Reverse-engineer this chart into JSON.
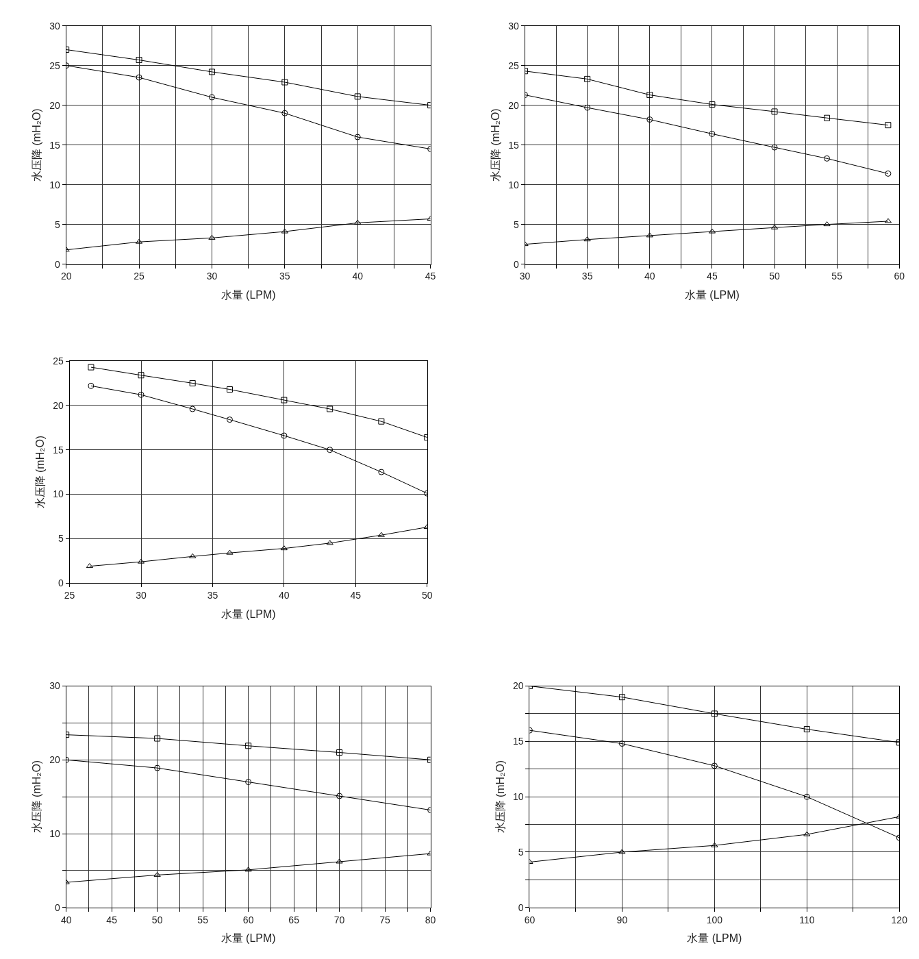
{
  "chart_data": [
    {
      "type": "line",
      "xlabel": "水量 (LPM)",
      "ylabel": "水压降 (mH₂O)",
      "grid": true,
      "xlim": [
        20,
        45
      ],
      "ylim": [
        0,
        30
      ],
      "xticks": [
        20,
        {
          "value": 22.5,
          "label": null
        },
        25,
        {
          "value": 27.5,
          "label": null
        },
        30,
        {
          "value": 32.5,
          "label": null
        },
        35,
        {
          "value": 37.5,
          "label": null
        },
        40,
        {
          "value": 42.5,
          "label": null
        },
        45
      ],
      "yticks": [
        0,
        5,
        10,
        15,
        20,
        25,
        30
      ],
      "series": [
        {
          "color": "#000000",
          "marker": "square",
          "x": [
            20,
            25,
            30,
            35,
            40,
            45
          ],
          "values": [
            27.0,
            25.7,
            24.2,
            22.9,
            21.1,
            20.0
          ]
        },
        {
          "color": "#000000",
          "marker": "circle",
          "x": [
            20,
            25,
            30,
            35,
            40,
            45
          ],
          "values": [
            25.0,
            23.5,
            21.0,
            19.0,
            16.0,
            14.5
          ]
        },
        {
          "color": "#000000",
          "marker": "triangle",
          "x": [
            20,
            25,
            30,
            35,
            40,
            45
          ],
          "values": [
            1.8,
            2.8,
            3.3,
            4.1,
            5.2,
            5.7
          ]
        }
      ]
    },
    {
      "type": "line",
      "xlabel": "水量 (LPM)",
      "ylabel": "水压降 (mH₂O)",
      "grid": true,
      "xlim": [
        30,
        60
      ],
      "ylim": [
        0,
        30
      ],
      "xticks": [
        30,
        {
          "value": 32.5,
          "label": null
        },
        35,
        {
          "value": 37.5,
          "label": null
        },
        40,
        {
          "value": 42.5,
          "label": null
        },
        45,
        {
          "value": 47.5,
          "label": null
        },
        50,
        {
          "value": 52.5,
          "label": null
        },
        55,
        {
          "value": 57.5,
          "label": null
        },
        60
      ],
      "yticks": [
        0,
        5,
        10,
        15,
        20,
        25,
        30
      ],
      "series": [
        {
          "color": "#000000",
          "marker": "square",
          "x": [
            30,
            35,
            40,
            45,
            50,
            54.2,
            59.1
          ],
          "values": [
            24.3,
            23.3,
            21.3,
            20.1,
            19.2,
            18.4,
            17.5
          ]
        },
        {
          "color": "#000000",
          "marker": "circle",
          "x": [
            30,
            35,
            40,
            45,
            50,
            54.2,
            59.1
          ],
          "values": [
            21.3,
            19.7,
            18.2,
            16.4,
            14.7,
            13.3,
            11.4
          ]
        },
        {
          "color": "#000000",
          "marker": "triangle",
          "x": [
            30,
            35,
            40,
            45,
            50,
            54.2,
            59.1
          ],
          "values": [
            2.5,
            3.1,
            3.6,
            4.1,
            4.6,
            5.0,
            5.4
          ]
        }
      ]
    },
    {
      "type": "line",
      "xlabel": "水量 (LPM)",
      "ylabel": "水压降 (mH₂O)",
      "grid": true,
      "xlim": [
        25,
        50
      ],
      "ylim": [
        0,
        25
      ],
      "xticks": [
        25,
        30,
        35,
        40,
        45,
        50
      ],
      "yticks": [
        0,
        5,
        10,
        15,
        20,
        25
      ],
      "series": [
        {
          "color": "#000000",
          "marker": "square",
          "x": [
            26.5,
            30,
            33.6,
            36.2,
            40,
            43.2,
            46.8,
            50
          ],
          "values": [
            24.3,
            23.4,
            22.5,
            21.8,
            20.6,
            19.6,
            18.2,
            16.4
          ]
        },
        {
          "color": "#000000",
          "marker": "circle",
          "x": [
            26.5,
            30,
            33.6,
            36.2,
            40,
            43.2,
            46.8,
            50
          ],
          "values": [
            22.2,
            21.2,
            19.6,
            18.4,
            16.6,
            15.0,
            12.5,
            10.1
          ]
        },
        {
          "color": "#000000",
          "marker": "triangle",
          "x": [
            26.4,
            30,
            33.6,
            36.2,
            40,
            43.2,
            46.8,
            50
          ],
          "values": [
            1.9,
            2.4,
            3.0,
            3.4,
            3.9,
            4.5,
            5.4,
            6.3
          ]
        }
      ]
    },
    {
      "type": "line",
      "xlabel": "水量 (LPM)",
      "ylabel": "水压降 (mH₂O)",
      "grid": true,
      "xlim": [
        40,
        80
      ],
      "ylim": [
        0,
        30
      ],
      "xticks": [
        40,
        {
          "value": 42.5,
          "label": null
        },
        45,
        {
          "value": 47.5,
          "label": null
        },
        50,
        {
          "value": 52.5,
          "label": null
        },
        55,
        {
          "value": 57.5,
          "label": null
        },
        60,
        {
          "value": 62.5,
          "label": null
        },
        65,
        {
          "value": 67.5,
          "label": null
        },
        70,
        {
          "value": 72.5,
          "label": null
        },
        75,
        {
          "value": 77.5,
          "label": null
        },
        80
      ],
      "yticks": [
        0,
        {
          "value": 5,
          "label": null
        },
        10,
        {
          "value": 15,
          "label": null
        },
        20,
        {
          "value": 25,
          "label": null
        },
        30
      ],
      "series": [
        {
          "color": "#000000",
          "marker": "square",
          "x": [
            40,
            50,
            60,
            70,
            80
          ],
          "values": [
            23.4,
            22.9,
            21.9,
            21.0,
            20.0
          ]
        },
        {
          "color": "#000000",
          "marker": "circle",
          "x": [
            40,
            50,
            60,
            70,
            80
          ],
          "values": [
            20.0,
            18.9,
            17.0,
            15.1,
            13.2
          ]
        },
        {
          "color": "#000000",
          "marker": "triangle",
          "x": [
            40,
            50,
            60,
            70,
            80
          ],
          "values": [
            3.4,
            4.4,
            5.1,
            6.2,
            7.3
          ]
        }
      ]
    },
    {
      "type": "line",
      "xlabel": "水量 (LPM)",
      "ylabel": "水压降 (mH₂O)",
      "grid": true,
      "ylim": [
        0,
        20
      ],
      "categories": [
        "60",
        "90",
        "100",
        "110",
        "120"
      ],
      "yticks": [
        0,
        {
          "value": 2.5,
          "label": null
        },
        5,
        {
          "value": 7.5,
          "label": null
        },
        10,
        {
          "value": 12.5,
          "label": null
        },
        15,
        {
          "value": 17.5,
          "label": null
        },
        20
      ],
      "series": [
        {
          "color": "#000000",
          "marker": "square",
          "values": [
            20.0,
            19.0,
            17.5,
            16.1,
            14.9
          ]
        },
        {
          "color": "#000000",
          "marker": "circle",
          "values": [
            16.0,
            14.8,
            12.8,
            10.0,
            6.3
          ]
        },
        {
          "color": "#000000",
          "marker": "triangle",
          "values": [
            4.1,
            5.0,
            5.6,
            6.6,
            8.2
          ]
        }
      ]
    }
  ]
}
